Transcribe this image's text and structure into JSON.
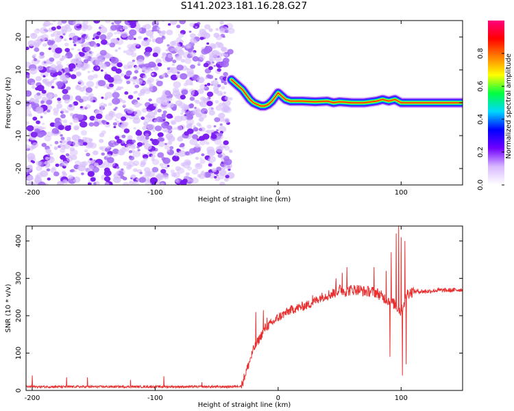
{
  "figure_title": "S141.2023.181.16.28.G27",
  "chart_data": [
    {
      "type": "heatmap",
      "title": "",
      "xlabel": "Height of straight line (km)",
      "ylabel": "Frequency (Hz)",
      "xlim": [
        -205,
        150
      ],
      "ylim": [
        -25,
        25
      ],
      "x_ticks": [
        -200,
        -100,
        0,
        100
      ],
      "x_tick_labels": [
        "-200",
        "-100",
        "0",
        "100"
      ],
      "y_ticks": [
        -20,
        -10,
        0,
        10,
        20
      ],
      "y_tick_labels": [
        "-20",
        "-10",
        "0",
        "10",
        "20"
      ],
      "noise_region_x": [
        -205,
        -38
      ],
      "ridge": [
        [
          -38,
          7.0
        ],
        [
          -35,
          6.0
        ],
        [
          -32,
          5.0
        ],
        [
          -29,
          4.0
        ],
        [
          -26,
          2.5
        ],
        [
          -23,
          1.0
        ],
        [
          -20,
          0.0
        ],
        [
          -17,
          -0.5
        ],
        [
          -14,
          -1.0
        ],
        [
          -11,
          -1.0
        ],
        [
          -8,
          -0.5
        ],
        [
          -5,
          0.5
        ],
        [
          -2,
          2.0
        ],
        [
          0,
          3.0
        ],
        [
          3,
          2.0
        ],
        [
          6,
          1.0
        ],
        [
          10,
          0.5
        ],
        [
          15,
          0.5
        ],
        [
          20,
          0.5
        ],
        [
          30,
          0.3
        ],
        [
          40,
          0.5
        ],
        [
          45,
          0.0
        ],
        [
          50,
          0.3
        ],
        [
          60,
          0.0
        ],
        [
          70,
          0.0
        ],
        [
          80,
          0.5
        ],
        [
          85,
          1.0
        ],
        [
          90,
          0.5
        ],
        [
          95,
          1.0
        ],
        [
          100,
          0.0
        ],
        [
          105,
          0.0
        ],
        [
          120,
          0.0
        ],
        [
          150,
          0.0
        ]
      ],
      "colorbar": {
        "label": "Normalized spectral amplitude",
        "range": [
          0,
          1
        ],
        "ticks": [
          0.0,
          0.2,
          0.4,
          0.6,
          0.8
        ],
        "tick_labels": [
          "0.0",
          "0.2",
          "0.4",
          "0.6",
          "0.8"
        ],
        "colormap": [
          "#ffffff",
          "#d8b8ff",
          "#7000ff",
          "#0000ff",
          "#00d8ff",
          "#00ff40",
          "#ffff00",
          "#ff8000",
          "#ff0000",
          "#ff0080"
        ]
      }
    },
    {
      "type": "line",
      "title": "",
      "xlabel": "Height of straight line (km)",
      "ylabel": "SNR (10 * v/v)",
      "xlim": [
        -205,
        150
      ],
      "ylim": [
        0,
        440
      ],
      "x_ticks": [
        -200,
        -100,
        0,
        100
      ],
      "x_tick_labels": [
        "-200",
        "-100",
        "0",
        "100"
      ],
      "y_ticks": [
        0,
        100,
        200,
        300,
        400
      ],
      "y_tick_labels": [
        "0",
        "100",
        "200",
        "300",
        "400"
      ],
      "color": "#e83030",
      "x": [
        -205,
        -180,
        -160,
        -140,
        -120,
        -100,
        -80,
        -60,
        -40,
        -30,
        -25,
        -20,
        -15,
        -10,
        -5,
        0,
        5,
        10,
        15,
        20,
        25,
        30,
        35,
        40,
        45,
        50,
        55,
        60,
        65,
        70,
        75,
        80,
        85,
        90,
        95,
        100,
        105,
        110,
        120,
        130,
        140,
        150
      ],
      "y": [
        10,
        10,
        10,
        10,
        10,
        10,
        10,
        10,
        10,
        12,
        60,
        110,
        140,
        170,
        180,
        195,
        205,
        215,
        220,
        225,
        230,
        240,
        250,
        255,
        260,
        270,
        265,
        270,
        270,
        265,
        265,
        262,
        250,
        240,
        230,
        210,
        260,
        265,
        265,
        268,
        268,
        270
      ],
      "spikes": [
        [
          -200,
          40
        ],
        [
          -172,
          35
        ],
        [
          -155,
          35
        ],
        [
          -120,
          28
        ],
        [
          -93,
          38
        ],
        [
          -62,
          22
        ],
        [
          -18,
          210
        ],
        [
          -12,
          215
        ],
        [
          -9,
          195
        ],
        [
          28,
          255
        ],
        [
          47,
          300
        ],
        [
          52,
          315
        ],
        [
          56,
          330
        ],
        [
          78,
          330
        ],
        [
          88,
          320
        ],
        [
          92,
          370
        ],
        [
          96,
          420
        ],
        [
          98,
          440
        ],
        [
          100,
          410
        ],
        [
          103,
          400
        ],
        [
          91,
          90
        ],
        [
          101,
          40
        ],
        [
          104,
          70
        ]
      ]
    }
  ]
}
